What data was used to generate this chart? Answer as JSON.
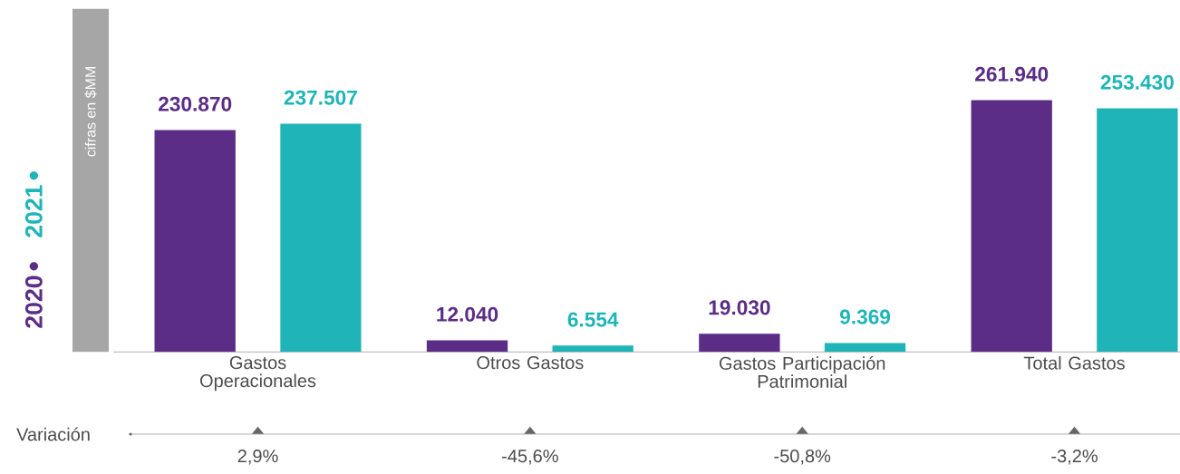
{
  "chart_data": {
    "type": "bar",
    "categories": [
      "Gastos Operacionales",
      "Otros Gastos",
      "Gastos Participación Patrimonial",
      "Total Gastos"
    ],
    "series": [
      {
        "name": "2020",
        "color": "#5b2d86",
        "values": [
          230870,
          12040,
          19030,
          261940
        ],
        "value_labels": [
          "230.870",
          "12.040",
          "19.030",
          "261.940"
        ]
      },
      {
        "name": "2021",
        "color": "#1fb5b8",
        "values": [
          237507,
          6554,
          9369,
          253430
        ],
        "value_labels": [
          "237.507",
          "6.554",
          "9.369",
          "253.430"
        ]
      }
    ],
    "tick_labels": "x",
    "legend": "left",
    "annotations": [
      "cifras en $MM",
      "Variación",
      "2,9%",
      "-45,6%",
      "-50,8%",
      "-3,2%"
    ]
  }
}
